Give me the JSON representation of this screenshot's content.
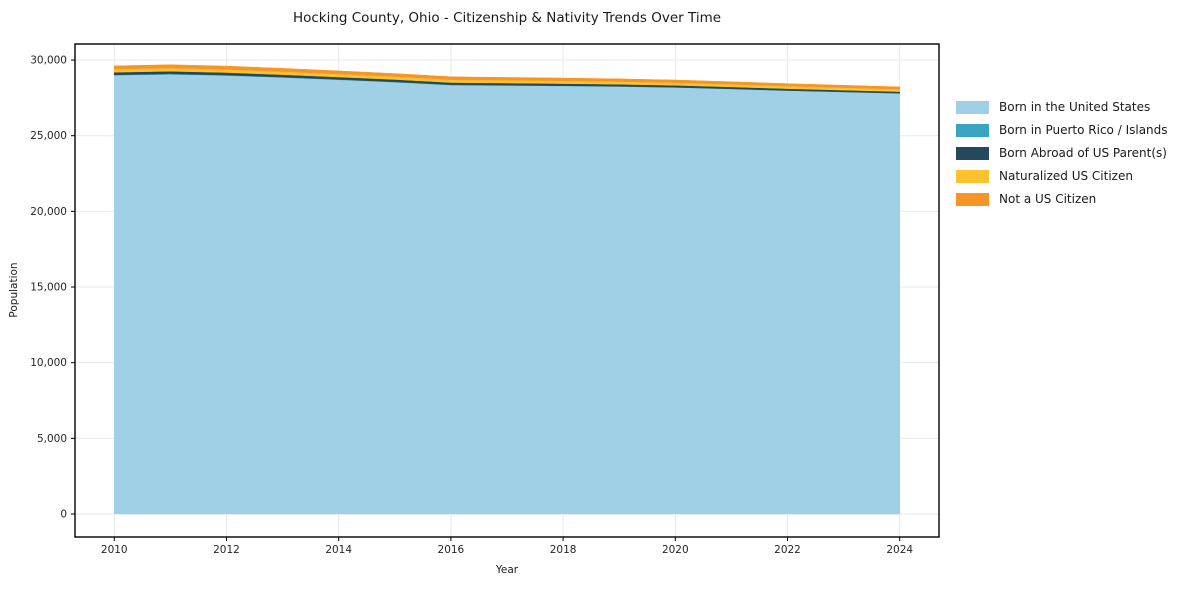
{
  "figure": {
    "title": "Hocking County, Ohio - Citizenship & Nativity Trends Over Time",
    "xlabel": "Year",
    "ylabel": "Population"
  },
  "chart_data": {
    "type": "area",
    "stacked": true,
    "title": "Hocking County, Ohio - Citizenship & Nativity Trends Over Time",
    "xlabel": "Year",
    "ylabel": "Population",
    "grid": true,
    "legend_position": "right",
    "x": [
      2010,
      2011,
      2012,
      2013,
      2014,
      2015,
      2016,
      2017,
      2018,
      2019,
      2020,
      2021,
      2022,
      2023,
      2024
    ],
    "series": [
      {
        "name": "Born in the United States",
        "color": "#9fd0e6",
        "values": [
          29000,
          29060,
          28980,
          28850,
          28700,
          28540,
          28350,
          28320,
          28290,
          28250,
          28190,
          28090,
          27980,
          27890,
          27800
        ]
      },
      {
        "name": "Born in Puerto Rico / Islands",
        "color": "#3aa5c2",
        "values": [
          25,
          25,
          25,
          20,
          20,
          20,
          15,
          15,
          15,
          15,
          10,
          10,
          10,
          10,
          10
        ]
      },
      {
        "name": "Born Abroad of US Parent(s)",
        "color": "#25495c",
        "values": [
          170,
          175,
          170,
          165,
          160,
          155,
          150,
          145,
          140,
          135,
          130,
          125,
          120,
          110,
          105
        ]
      },
      {
        "name": "Naturalized US Citizen",
        "color": "#fdc22f",
        "values": [
          205,
          210,
          210,
          205,
          200,
          195,
          190,
          185,
          185,
          180,
          180,
          175,
          170,
          165,
          160
        ]
      },
      {
        "name": "Not a US Citizen",
        "color": "#f79426",
        "values": [
          215,
          220,
          215,
          210,
          200,
          195,
          190,
          185,
          180,
          175,
          170,
          165,
          160,
          155,
          150
        ]
      }
    ],
    "xlim": [
      2009.3,
      2024.7
    ],
    "ylim": [
      -1520,
      31060
    ],
    "xticks": {
      "values": [
        2010,
        2012,
        2014,
        2016,
        2018,
        2020,
        2022,
        2024
      ],
      "labels": [
        "2010",
        "2012",
        "2014",
        "2016",
        "2018",
        "2020",
        "2022",
        "2024"
      ]
    },
    "yticks": {
      "values": [
        0,
        5000,
        10000,
        15000,
        20000,
        25000,
        30000
      ],
      "labels": [
        "0",
        "5,000",
        "10,000",
        "15,000",
        "20,000",
        "25,000",
        "30,000"
      ]
    }
  },
  "colors": {
    "background": "#ffffff",
    "grid": "#e9e9e9",
    "spine": "#000000",
    "tick_text": "#262626"
  }
}
